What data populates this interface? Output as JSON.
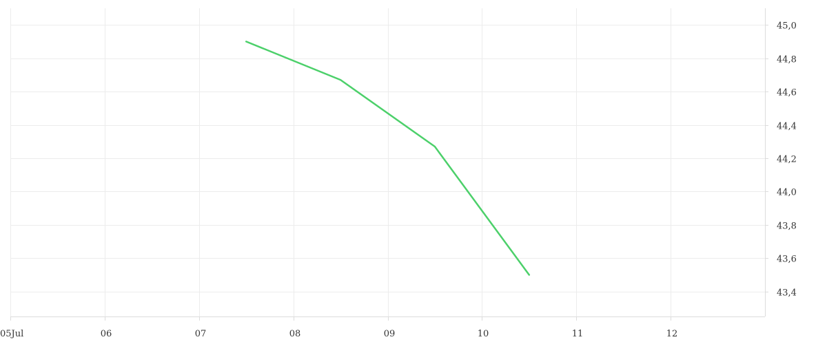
{
  "chart_data": {
    "type": "line",
    "x_axis_start_label": "05Jul",
    "x_tick_labels": [
      "05Jul",
      "06",
      "07",
      "08",
      "09",
      "10",
      "11",
      "12"
    ],
    "x_tick_values": [
      "2024-07-05",
      "2024-07-06",
      "2024-07-07",
      "2024-07-08",
      "2024-07-09",
      "2024-07-10",
      "2024-07-11",
      "2024-07-12"
    ],
    "y_tick_labels": [
      "43,4",
      "43,6",
      "43,8",
      "44,0",
      "44,2",
      "44,4",
      "44,6",
      "44,8",
      "45,0"
    ],
    "y_tick_values": [
      43.4,
      43.6,
      43.8,
      44.0,
      44.2,
      44.4,
      44.6,
      44.8,
      45.0
    ],
    "xlim": [
      "2024-07-05",
      "2024-07-13"
    ],
    "ylim": [
      43.25,
      45.1
    ],
    "y_axis_side": "right",
    "grid": true,
    "series": [
      {
        "color": "#4cd06a",
        "x": [
          "2024-07-07T12:00",
          "2024-07-08T12:00",
          "2024-07-09T12:00",
          "2024-07-10T12:00"
        ],
        "y": [
          44.9,
          44.67,
          44.27,
          43.5
        ]
      }
    ]
  }
}
